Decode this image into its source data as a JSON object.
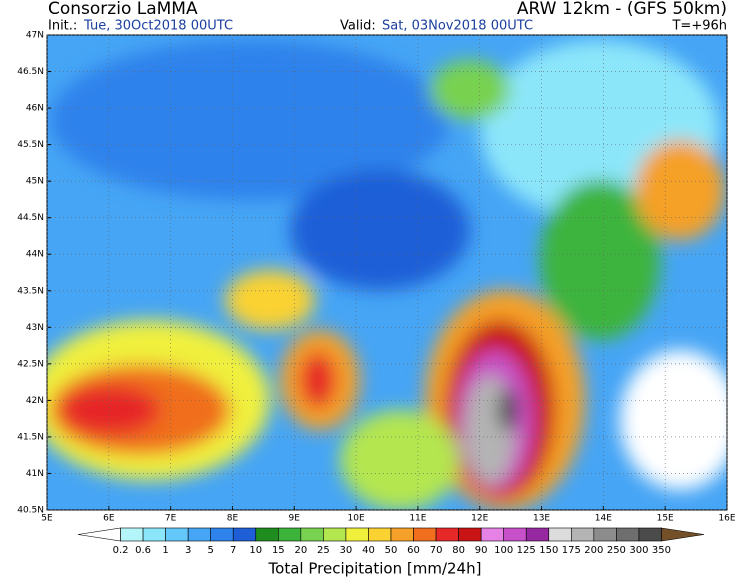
{
  "header": {
    "agency": "Consorzio LaMMA",
    "model": "ARW 12km - (GFS 50km)",
    "init_label": "Init.:",
    "init_time": "Tue, 30Oct2018 00UTC",
    "valid_label": "Valid:",
    "valid_time": "Sat, 03Nov2018 00UTC",
    "lead": "T=+96h"
  },
  "map": {
    "lat_labels": [
      "47N",
      "46.5N",
      "46N",
      "45.5N",
      "45N",
      "44.5N",
      "44N",
      "43.5N",
      "43N",
      "42.5N",
      "42N",
      "41.5N",
      "41N",
      "40.5N"
    ],
    "lon_labels": [
      "5E",
      "6E",
      "7E",
      "8E",
      "9E",
      "10E",
      "11E",
      "12E",
      "13E",
      "14E",
      "15E",
      "16E"
    ]
  },
  "colorbar": {
    "title": "Total Precipitation [mm/24h]",
    "bounds": [
      0.2,
      0.6,
      1,
      3,
      5,
      7,
      10,
      15,
      20,
      25,
      30,
      40,
      50,
      60,
      70,
      80,
      90,
      100,
      125,
      150,
      175,
      200,
      250,
      300,
      350
    ],
    "colors": [
      "#ffffff",
      "#b4f5fa",
      "#8ce6fa",
      "#64c8fa",
      "#46a5f5",
      "#2d82eb",
      "#1e5fd7",
      "#1e8c1e",
      "#3cb43c",
      "#78d250",
      "#b4e650",
      "#f0f03c",
      "#fad232",
      "#f5a028",
      "#f06e1e",
      "#e62828",
      "#c81414",
      "#e682e6",
      "#c850c8",
      "#9628a0",
      "#dcdcdc",
      "#b4b4b4",
      "#8c8c8c",
      "#6e6e6e",
      "#4b4b4b",
      "#735028"
    ]
  }
}
